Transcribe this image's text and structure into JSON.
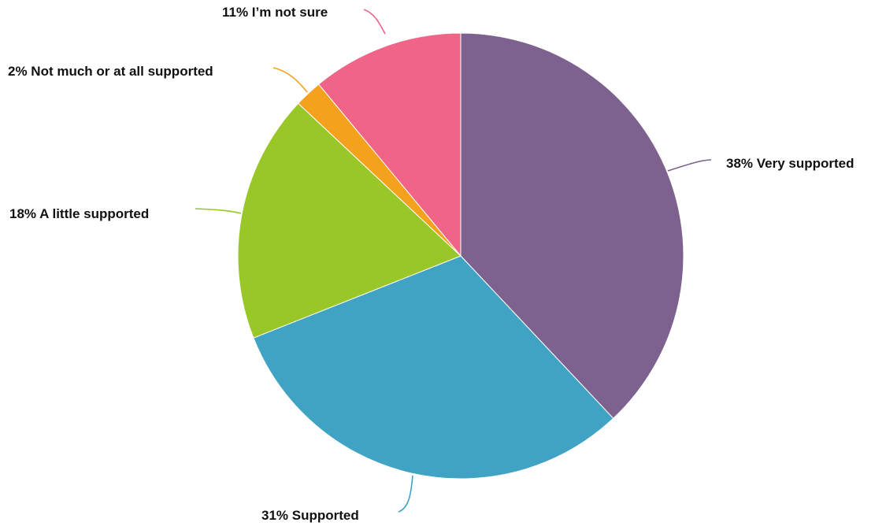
{
  "chart_data": {
    "type": "pie",
    "title": "",
    "start_angle_deg": 0,
    "direction": "clockwise",
    "slices": [
      {
        "label": "Very supported",
        "percent_label": "38%",
        "value": 38,
        "color": "#7d618e"
      },
      {
        "label": "Supported",
        "percent_label": "31%",
        "value": 31,
        "color": "#40a3c3"
      },
      {
        "label": "A little supported",
        "percent_label": "18%",
        "value": 18,
        "color": "#98c727"
      },
      {
        "label": "Not much or at all supported",
        "percent_label": "2%",
        "value": 2,
        "color": "#f4a21e"
      },
      {
        "label": "I’m not sure",
        "percent_label": "11%",
        "value": 11,
        "color": "#ef6487"
      }
    ]
  }
}
